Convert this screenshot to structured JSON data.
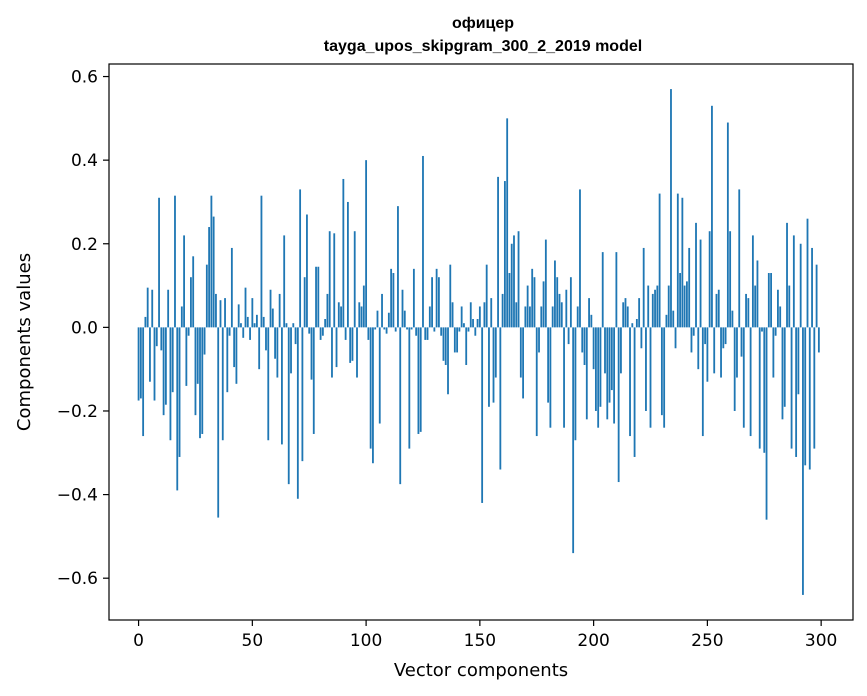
{
  "chart_data": {
    "type": "bar",
    "title": "офицер",
    "subtitle": "tayga_upos_skipgram_300_2_2019 model",
    "xlabel": "Vector components",
    "ylabel": "Components values",
    "xlim": [
      -13,
      314
    ],
    "ylim": [
      -0.7,
      0.63
    ],
    "xticks": [
      0,
      50,
      100,
      150,
      200,
      250,
      300
    ],
    "xtick_labels": [
      "0",
      "50",
      "100",
      "150",
      "200",
      "250",
      "300"
    ],
    "yticks": [
      -0.6,
      -0.4,
      -0.2,
      0.0,
      0.2,
      0.4,
      0.6
    ],
    "ytick_labels": [
      "−0.6",
      "−0.4",
      "−0.2",
      "0.0",
      "0.2",
      "0.4",
      "0.6"
    ],
    "grid": false,
    "bar_color": "#1f77b4",
    "categories_note": "component index 0..299",
    "values": [
      -0.175,
      -0.17,
      -0.26,
      0.025,
      0.095,
      -0.13,
      0.09,
      -0.175,
      -0.045,
      0.31,
      -0.055,
      -0.21,
      -0.185,
      0.09,
      -0.27,
      -0.155,
      0.315,
      -0.39,
      -0.31,
      0.05,
      0.22,
      -0.14,
      -0.02,
      0.12,
      0.17,
      -0.21,
      -0.135,
      -0.265,
      -0.255,
      -0.065,
      0.15,
      0.24,
      0.315,
      0.265,
      0.08,
      -0.455,
      0.065,
      -0.27,
      0.07,
      -0.155,
      -0.02,
      0.19,
      -0.095,
      -0.135,
      0.055,
      0.01,
      -0.025,
      0.095,
      0.025,
      -0.03,
      0.07,
      0.01,
      0.03,
      -0.1,
      0.315,
      0.025,
      -0.055,
      -0.27,
      0.09,
      0.045,
      -0.075,
      -0.12,
      0.08,
      -0.28,
      0.22,
      0.01,
      -0.375,
      -0.11,
      0.01,
      -0.04,
      -0.41,
      0.33,
      -0.32,
      0.12,
      0.27,
      -0.015,
      -0.125,
      -0.255,
      0.145,
      0.145,
      -0.03,
      -0.02,
      0.02,
      0.08,
      0.23,
      -0.12,
      0.225,
      -0.095,
      0.06,
      0.05,
      0.355,
      -0.03,
      0.3,
      -0.085,
      -0.08,
      0.23,
      -0.12,
      0.06,
      0.05,
      0.1,
      0.4,
      -0.03,
      -0.29,
      -0.325,
      -0.005,
      0.04,
      -0.23,
      0.08,
      -0.005,
      -0.015,
      0.035,
      0.14,
      0.13,
      -0.01,
      0.29,
      -0.375,
      0.09,
      0.04,
      -0.005,
      -0.29,
      -0.005,
      0.14,
      -0.02,
      -0.255,
      -0.25,
      0.41,
      -0.03,
      -0.03,
      0.05,
      0.12,
      -0.01,
      0.14,
      0.12,
      -0.02,
      -0.08,
      -0.09,
      -0.16,
      0.15,
      0.06,
      -0.06,
      -0.06,
      -0.01,
      0.05,
      0.01,
      -0.09,
      -0.01,
      0.06,
      0.02,
      -0.02,
      0.02,
      0.05,
      -0.42,
      0.06,
      0.15,
      -0.19,
      0.07,
      -0.18,
      -0.12,
      0.36,
      -0.34,
      0.08,
      0.35,
      0.5,
      0.13,
      0.2,
      0.22,
      0.06,
      0.23,
      -0.12,
      -0.17,
      0.05,
      0.1,
      0.05,
      0.14,
      0.12,
      -0.26,
      -0.06,
      0.05,
      0.11,
      0.21,
      -0.18,
      -0.24,
      0.05,
      0.16,
      0.12,
      0.08,
      0.06,
      -0.24,
      0.09,
      -0.04,
      0.12,
      -0.54,
      -0.27,
      0.05,
      0.33,
      -0.06,
      -0.09,
      -0.22,
      0.07,
      0.03,
      -0.1,
      -0.2,
      -0.24,
      -0.19,
      0.18,
      -0.11,
      -0.22,
      -0.18,
      -0.15,
      -0.23,
      0.18,
      -0.37,
      -0.11,
      0.06,
      0.07,
      0.05,
      -0.26,
      0.01,
      -0.31,
      0.02,
      0.07,
      -0.05,
      0.19,
      -0.2,
      0.1,
      -0.24,
      0.08,
      0.09,
      0.1,
      0.32,
      -0.21,
      -0.24,
      0.03,
      0.1,
      0.57,
      0.04,
      -0.05,
      0.32,
      0.13,
      0.31,
      0.1,
      0.11,
      0.19,
      -0.06,
      -0.02,
      0.25,
      -0.1,
      0.21,
      -0.26,
      -0.04,
      -0.13,
      0.23,
      0.53,
      -0.11,
      0.08,
      0.09,
      -0.12,
      -0.05,
      -0.04,
      0.49,
      0.23,
      0.04,
      -0.2,
      -0.12,
      0.33,
      -0.07,
      -0.24,
      0.08,
      0.07,
      -0.26,
      0.22,
      0.1,
      0.16,
      -0.29,
      -0.01,
      -0.3,
      -0.46,
      0.13,
      0.13,
      -0.12,
      -0.02,
      0.09,
      0.05,
      -0.22,
      -0.19,
      0.25,
      0.1,
      -0.29,
      0.22,
      -0.31,
      -0.16,
      0.2,
      -0.64,
      -0.33,
      0.26,
      -0.34,
      0.19,
      -0.29,
      0.15,
      -0.06
    ]
  }
}
